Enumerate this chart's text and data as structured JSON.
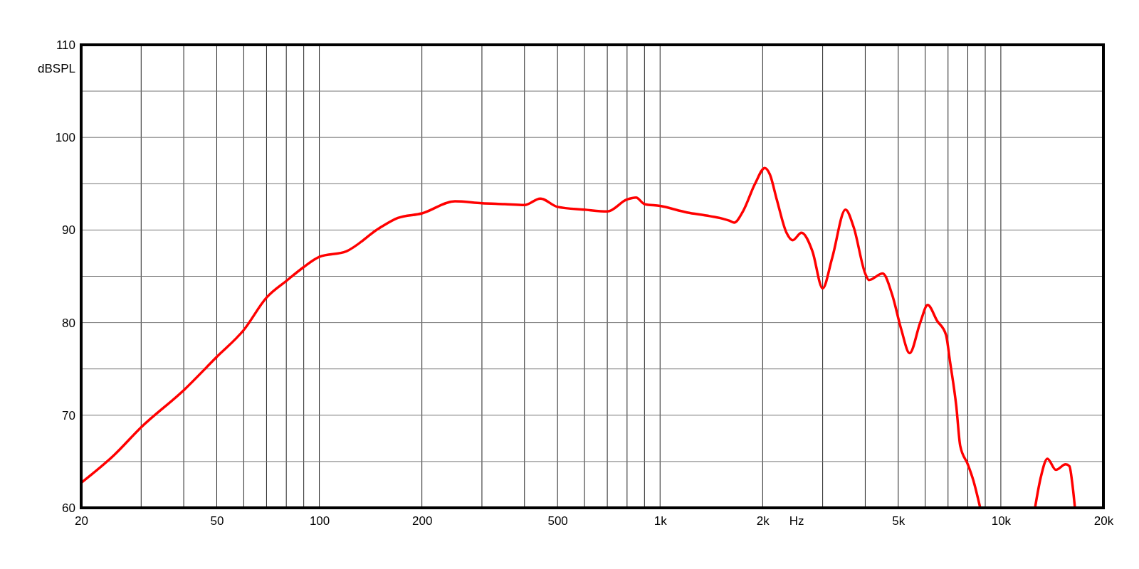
{
  "chart_data": {
    "type": "line",
    "xlabel": "Hz",
    "ylabel": "dBSPL",
    "log": "x",
    "grid": true,
    "marker": "none",
    "line_style": "solid",
    "xlim": [
      20,
      20000
    ],
    "ylim": [
      60,
      110
    ],
    "xticks": [
      20,
      {
        "value": 30,
        "label": null
      },
      {
        "value": 40,
        "label": null
      },
      50,
      {
        "value": 60,
        "label": null
      },
      {
        "value": 70,
        "label": null
      },
      {
        "value": 80,
        "label": null
      },
      {
        "value": 90,
        "label": null
      },
      100,
      200,
      {
        "value": 300,
        "label": null
      },
      {
        "value": 400,
        "label": null
      },
      500,
      {
        "value": 600,
        "label": null
      },
      {
        "value": 700,
        "label": null
      },
      {
        "value": 800,
        "label": null
      },
      {
        "value": 900,
        "label": null
      },
      {
        "value": 1000,
        "label": "1k"
      },
      {
        "value": 2000,
        "label": "2k"
      },
      {
        "value": 3000,
        "label": null
      },
      {
        "value": 4000,
        "label": null
      },
      {
        "value": 5000,
        "label": "5k"
      },
      {
        "value": 6000,
        "label": null
      },
      {
        "value": 7000,
        "label": null
      },
      {
        "value": 8000,
        "label": null
      },
      {
        "value": 9000,
        "label": null
      },
      {
        "value": 10000,
        "label": "10k"
      },
      {
        "value": 20000,
        "label": "20k"
      }
    ],
    "yticks": [
      60,
      {
        "value": 65,
        "label": null
      },
      70,
      {
        "value": 75,
        "label": null
      },
      80,
      {
        "value": 85,
        "label": null
      },
      90,
      {
        "value": 95,
        "label": null
      },
      100,
      {
        "value": 105,
        "label": null
      },
      110
    ],
    "series": [
      {
        "color": "#ff0000",
        "x": [
          20,
          25,
          30,
          40,
          50,
          60,
          70,
          80,
          90,
          100,
          120,
          150,
          170,
          200,
          250,
          300,
          350,
          400,
          445,
          500,
          600,
          700,
          800,
          850,
          900,
          1000,
          1200,
          1400,
          1600,
          1650,
          1750,
          1900,
          2030,
          2100,
          2200,
          2350,
          2450,
          2600,
          2800,
          3000,
          3200,
          3500,
          3700,
          4000,
          4100,
          4500,
          4800,
          5100,
          5400,
          5800,
          6100,
          6500,
          6900,
          7100,
          7400,
          7600,
          8000,
          8300,
          8700,
          10500,
          12600,
          13100,
          13700,
          14500,
          15500,
          15900,
          16200,
          16500
        ],
        "values": [
          62.7,
          65.7,
          68.7,
          72.7,
          76.3,
          79.2,
          82.7,
          84.5,
          86.0,
          87.1,
          87.7,
          90.2,
          91.3,
          91.8,
          93.1,
          92.9,
          92.8,
          92.7,
          93.4,
          92.5,
          92.2,
          92.0,
          93.3,
          93.5,
          92.8,
          92.6,
          91.9,
          91.5,
          91.0,
          90.8,
          92.0,
          95.0,
          96.7,
          96.0,
          93.3,
          89.7,
          88.9,
          89.7,
          87.7,
          83.7,
          87.0,
          92.2,
          90.3,
          85.3,
          84.6,
          85.3,
          83.0,
          79.3,
          76.7,
          80.0,
          81.9,
          80.2,
          78.7,
          75.7,
          71.0,
          66.7,
          64.7,
          63.0,
          60.0,
          null,
          60.0,
          63.3,
          65.3,
          64.1,
          64.7,
          64.5,
          62.7,
          60.0
        ]
      }
    ]
  }
}
